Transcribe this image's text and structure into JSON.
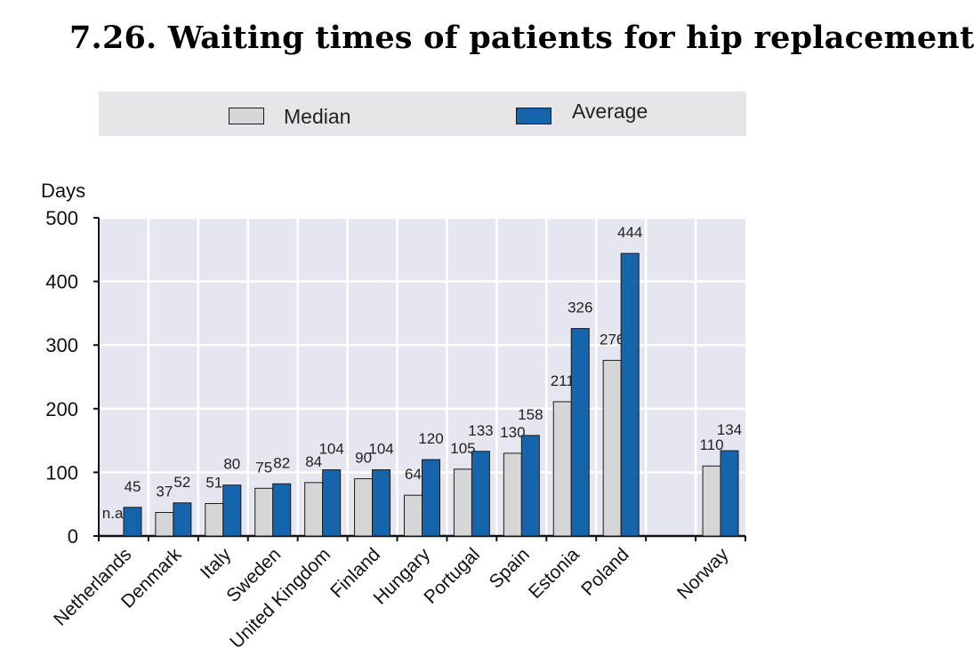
{
  "title": "7.26.  Waiting times of patients for hip replacement",
  "colors": {
    "median": "#d6d6d6",
    "average": "#1565ad",
    "plot_background": "#e6e6f0",
    "grid": "#ffffff",
    "legend_background": "#e6e6e8"
  },
  "chart_data": {
    "type": "bar",
    "title": "7.26.  Waiting times of patients for hip replacement",
    "ylabel": "Days",
    "xlabel": "",
    "ylim": [
      0,
      500
    ],
    "yticks": [
      0,
      100,
      200,
      300,
      400,
      500
    ],
    "grid": true,
    "legend_position": "top",
    "categories": [
      "Netherlands",
      "Denmark",
      "Italy",
      "Sweden",
      "United Kingdom",
      "Finland",
      "Hungary",
      "Portugal",
      "Spain",
      "Estonia",
      "Poland",
      "",
      "Norway"
    ],
    "series": [
      {
        "name": "Median",
        "values": [
          null,
          37,
          51,
          75,
          84,
          90,
          64,
          105,
          130,
          211,
          276,
          null,
          110
        ],
        "labels": [
          "n.a.",
          "37",
          "51",
          "75",
          "84",
          "90",
          "64",
          "105",
          "130",
          "211",
          "276",
          "",
          "110"
        ]
      },
      {
        "name": "Average",
        "values": [
          45,
          52,
          80,
          82,
          104,
          104,
          120,
          133,
          158,
          326,
          444,
          null,
          134
        ],
        "labels": [
          "45",
          "52",
          "80",
          "82",
          "104",
          "104",
          "120",
          "133",
          "158",
          "326",
          "444",
          "",
          "134"
        ]
      }
    ]
  }
}
